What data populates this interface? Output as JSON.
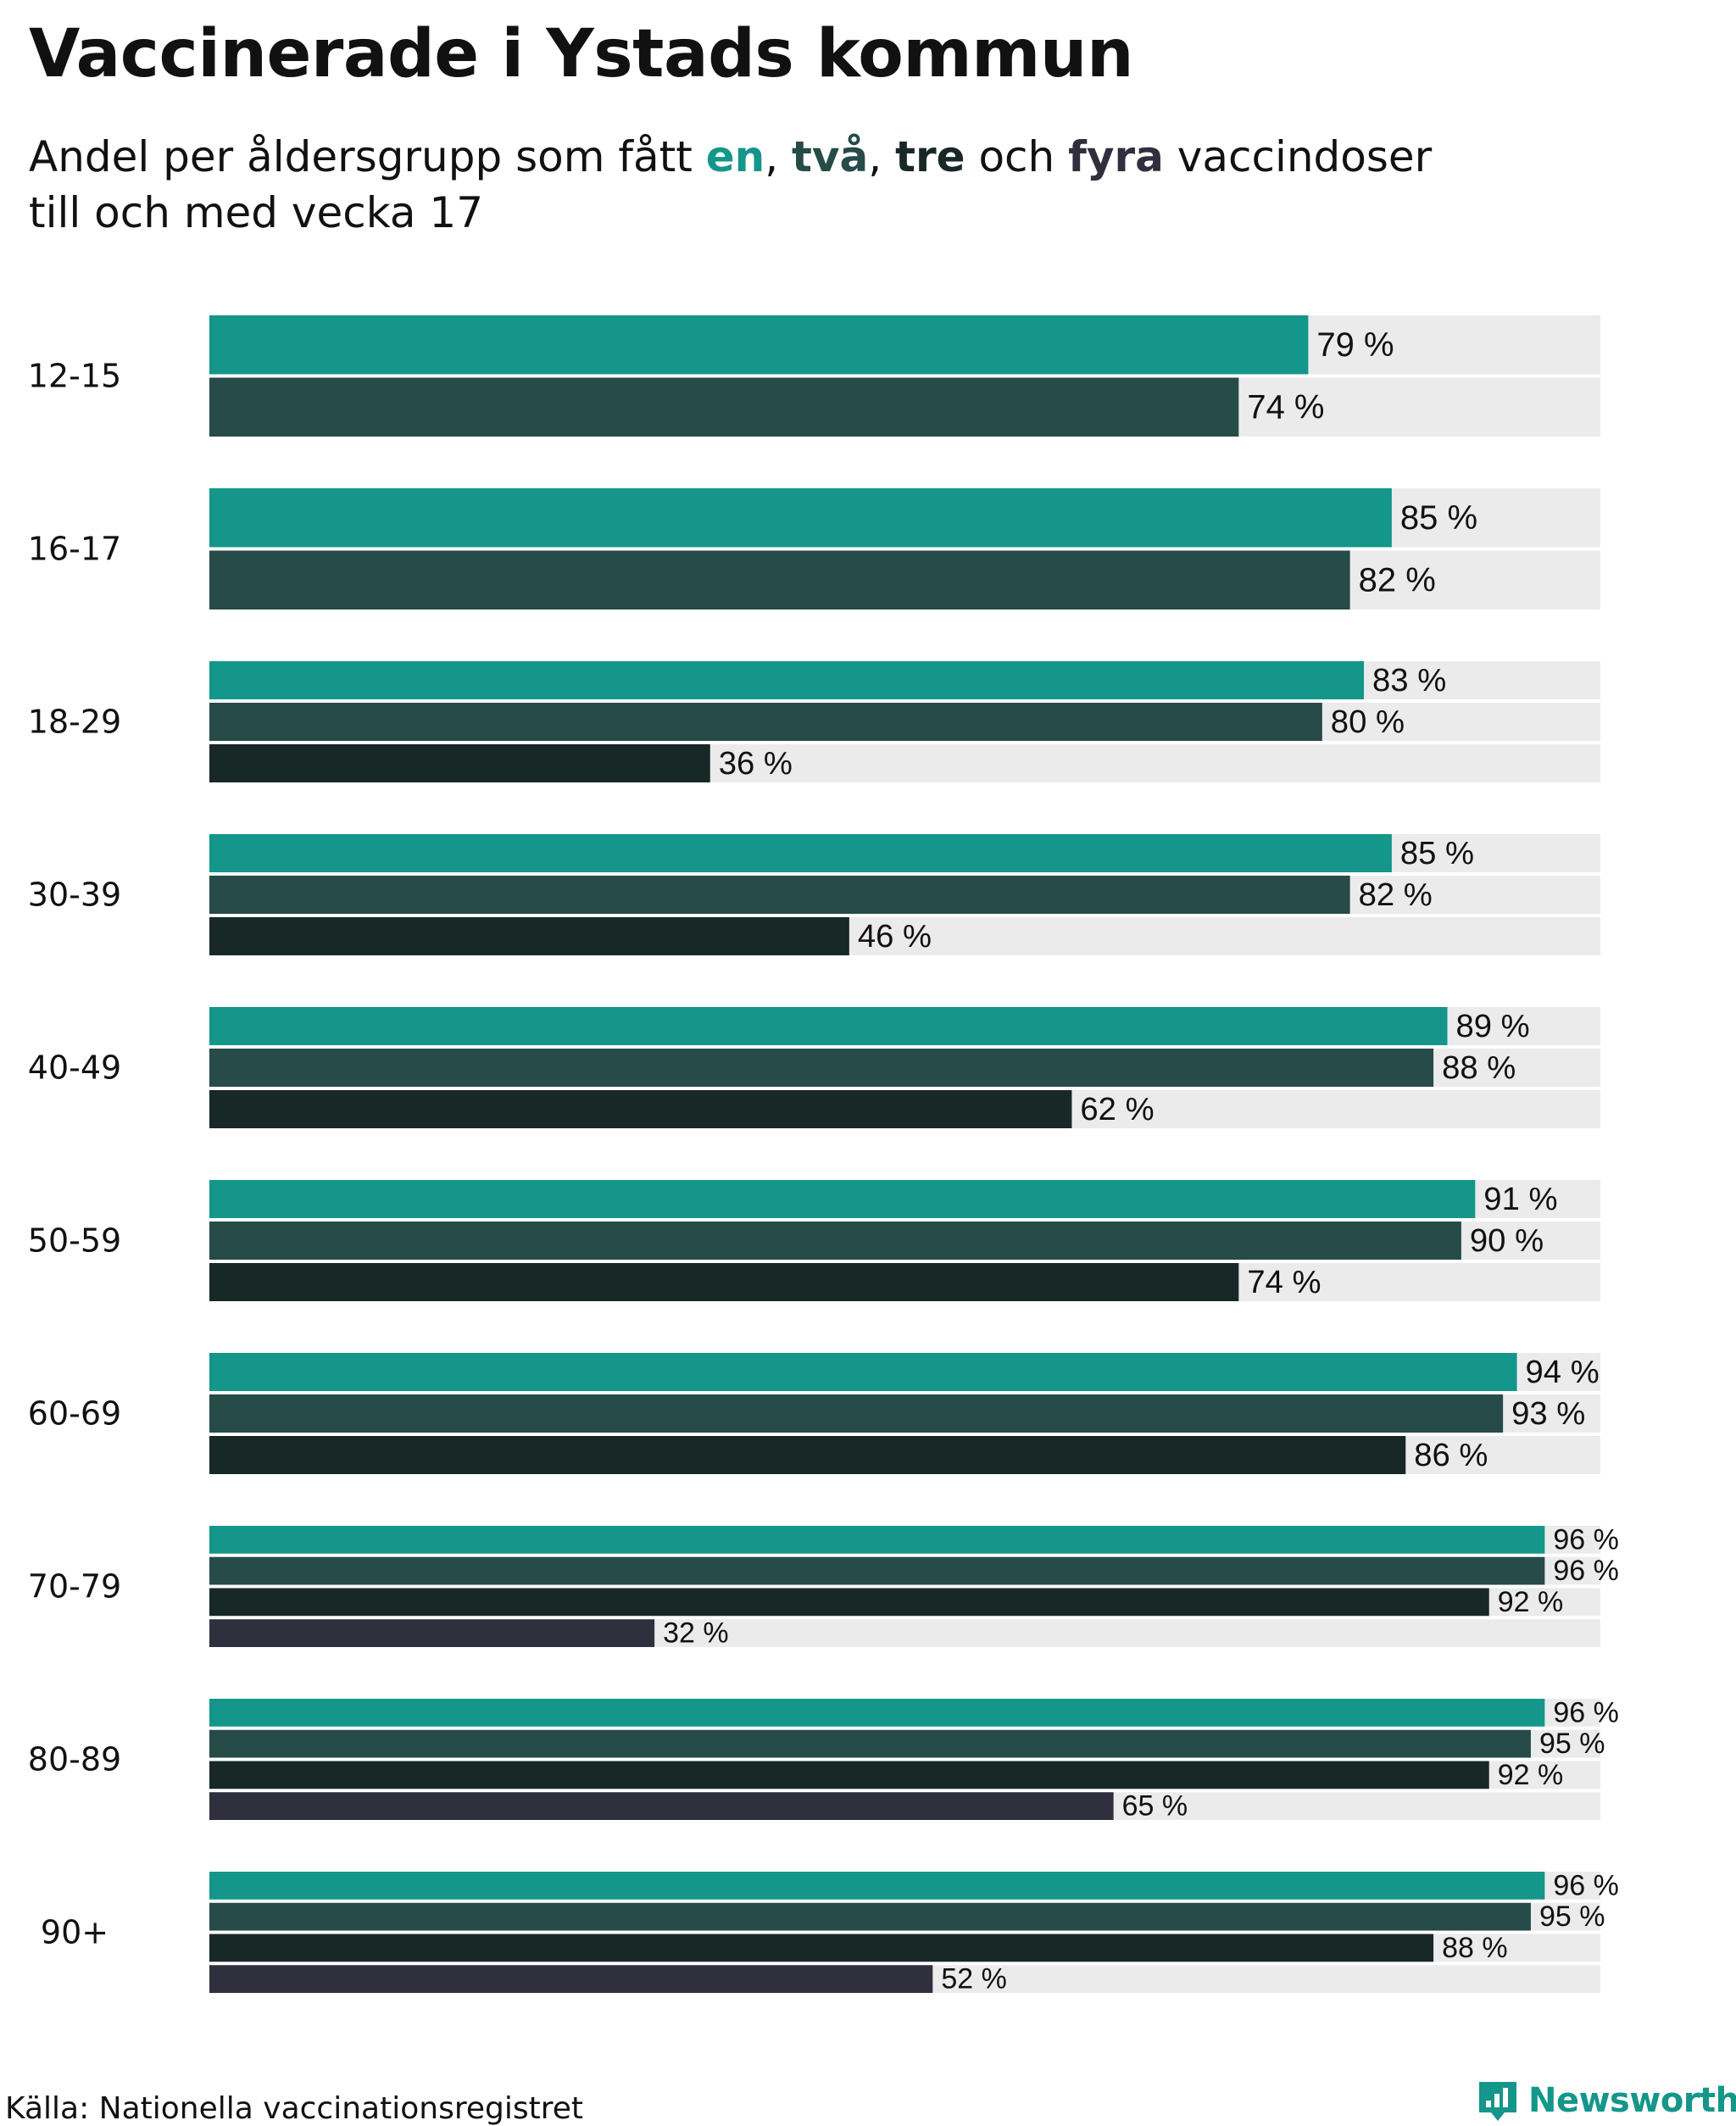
{
  "colors": {
    "dose_1": "#14968a",
    "dose_2": "#264b48",
    "dose_3": "#172827",
    "dose_4": "#2f2f3d",
    "track": "#ebebeb",
    "text": "#111111",
    "logo": "#14968a"
  },
  "header": {
    "title": "Vaccinerade i Ystads kommun",
    "subtitle_pre": "Andel per åldersgrupp som fått ",
    "kw1": "en",
    "sep1": ", ",
    "kw2": "två",
    "sep2": ", ",
    "kw3": "tre",
    "sep3": " och ",
    "kw4": "fyra",
    "subtitle_post": " vaccindoser",
    "subtitle_line2": "till och med vecka 17"
  },
  "footer": {
    "source": "Källa: Nationella vaccinationsregistret",
    "logo_text": "Newsworthy",
    "logo_icon": "newsworthy-chart-icon"
  },
  "chart_data": {
    "type": "bar",
    "orientation": "horizontal",
    "xlim": [
      0,
      100
    ],
    "value_suffix": " %",
    "groups": [
      {
        "label": "12-15",
        "values": [
          79,
          74
        ]
      },
      {
        "label": "16-17",
        "values": [
          85,
          82
        ]
      },
      {
        "label": "18-29",
        "values": [
          83,
          80,
          36
        ]
      },
      {
        "label": "30-39",
        "values": [
          85,
          82,
          46
        ]
      },
      {
        "label": "40-49",
        "values": [
          89,
          88,
          62
        ]
      },
      {
        "label": "50-59",
        "values": [
          91,
          90,
          74
        ]
      },
      {
        "label": "60-69",
        "values": [
          94,
          93,
          86
        ]
      },
      {
        "label": "70-79",
        "values": [
          96,
          96,
          92,
          32
        ]
      },
      {
        "label": "80-89",
        "values": [
          96,
          95,
          92,
          65
        ]
      },
      {
        "label": "90+",
        "values": [
          96,
          95,
          88,
          52
        ]
      }
    ]
  }
}
